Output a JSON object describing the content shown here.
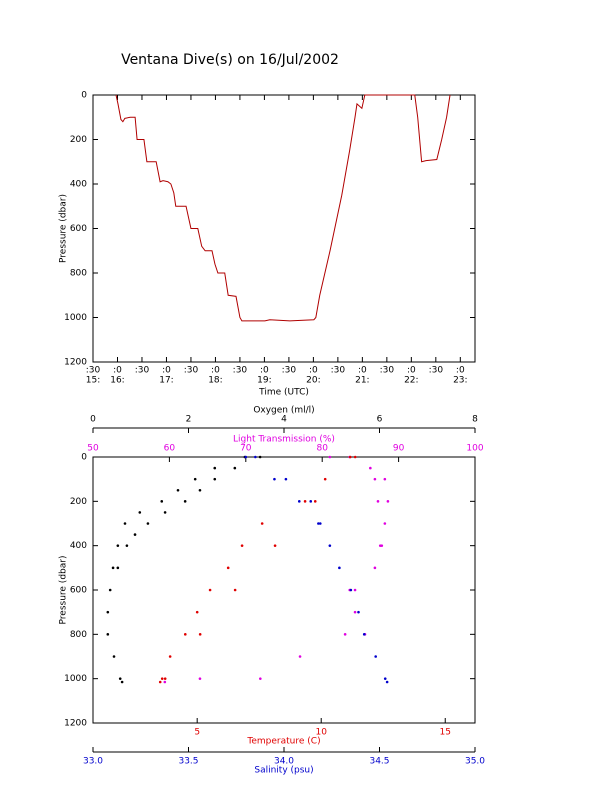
{
  "chart_data": [
    {
      "type": "line",
      "title": "Ventana Dive(s) on 16/Jul/2002",
      "xlabel": "Time (UTC)",
      "ylabel": "Pressure (dbar)",
      "color": "#b00000",
      "x": [
        15.97,
        16.01,
        16.07,
        16.11,
        16.15,
        16.26,
        16.36,
        16.4,
        16.54,
        16.6,
        16.79,
        16.87,
        16.93,
        17.03,
        17.09,
        17.15,
        17.19,
        17.4,
        17.46,
        17.5,
        17.64,
        17.72,
        17.79,
        17.93,
        17.99,
        18.05,
        18.19,
        18.26,
        18.42,
        18.5,
        18.54,
        19.01,
        19.11,
        19.52,
        20.01,
        20.05,
        20.13,
        20.34,
        20.58,
        20.74,
        20.85,
        20.89,
        20.99,
        21.05,
        21.11,
        22.07,
        22.13,
        22.21,
        22.3,
        22.52,
        22.62,
        22.72,
        22.79
      ],
      "values": [
        0,
        40,
        110,
        120,
        105,
        100,
        100,
        200,
        200,
        300,
        300,
        390,
        385,
        390,
        400,
        440,
        500,
        500,
        560,
        600,
        600,
        680,
        700,
        700,
        760,
        800,
        800,
        900,
        905,
        1000,
        1015,
        1015,
        1010,
        1015,
        1010,
        1000,
        900,
        700,
        450,
        250,
        100,
        40,
        60,
        0,
        0,
        0,
        100,
        300,
        295,
        290,
        200,
        100,
        0
      ],
      "xlim": [
        15.5,
        23.3
      ],
      "ylim": [
        1200,
        0
      ],
      "xticks": [
        {
          "value": 15.5,
          "label": ":30"
        },
        {
          "value": 16,
          "label": ":0"
        },
        {
          "value": 16.5,
          "label": ":30"
        },
        {
          "value": 17,
          "label": ":0"
        },
        {
          "value": 17.5,
          "label": ":30"
        },
        {
          "value": 18,
          "label": ":0"
        },
        {
          "value": 18.5,
          "label": ":30"
        },
        {
          "value": 19,
          "label": ":0"
        },
        {
          "value": 19.5,
          "label": ":30"
        },
        {
          "value": 20,
          "label": ":0"
        },
        {
          "value": 20.5,
          "label": ":30"
        },
        {
          "value": 21,
          "label": ":0"
        },
        {
          "value": 21.5,
          "label": ":30"
        },
        {
          "value": 22,
          "label": ":0"
        },
        {
          "value": 22.5,
          "label": ":30"
        },
        {
          "value": 23,
          "label": ":0"
        }
      ],
      "xtick_hours": [
        {
          "value": 15.5,
          "label": "15:"
        },
        {
          "value": 16,
          "label": "16:"
        },
        {
          "value": 17,
          "label": "17:"
        },
        {
          "value": 18,
          "label": "18:"
        },
        {
          "value": 19,
          "label": "19:"
        },
        {
          "value": 20,
          "label": "20:"
        },
        {
          "value": 21,
          "label": "21:"
        },
        {
          "value": 22,
          "label": "22:"
        },
        {
          "value": 23,
          "label": "23:"
        }
      ],
      "yticks": [
        0,
        200,
        400,
        600,
        800,
        1000,
        1200
      ]
    },
    {
      "type": "scatter",
      "ylabel": "Pressure (dbar)",
      "ylim": [
        1200,
        0
      ],
      "yticks": [
        0,
        200,
        400,
        600,
        800,
        1000,
        1200
      ],
      "x_axes": [
        {
          "label": "Oxygen (ml/l)",
          "color": "#000000",
          "position": "top-outer",
          "xlim": [
            0,
            8
          ],
          "xticks": [
            0,
            2,
            4,
            6,
            8
          ],
          "x": [
            3.18,
            2.55,
            2.14,
            1.78,
            1.44,
            0.98,
            0.67,
            0.52,
            0.42,
            0.36,
            0.31,
            0.31,
            0.44,
            0.57,
            0.61,
            3.5,
            2.97,
            2.55,
            2.24,
            1.93,
            1.51,
            1.15,
            0.88,
            0.71,
            0.52
          ],
          "values": [
            0,
            50,
            100,
            150,
            200,
            250,
            300,
            400,
            500,
            600,
            700,
            800,
            900,
            1000,
            1015,
            0,
            50,
            100,
            150,
            200,
            250,
            300,
            350,
            400,
            500
          ]
        },
        {
          "label": "Light Transmission (%)",
          "color": "#e000e0",
          "position": "top",
          "xlim": [
            50,
            100
          ],
          "xticks": [
            50,
            60,
            70,
            80,
            90,
            100
          ],
          "x": [
            81.0,
            86.3,
            86.9,
            87.3,
            88.2,
            87.6,
            86.9,
            83.6,
            84.3,
            85.6,
            77.1,
            64.0,
            59.4,
            83.6,
            88.2,
            88.6,
            87.8,
            84.3,
            83.0,
            71.9
          ],
          "values": [
            0,
            50,
            100,
            200,
            300,
            400,
            500,
            600,
            700,
            800,
            900,
            1000,
            1015,
            0,
            100,
            200,
            400,
            600,
            800,
            1000
          ]
        },
        {
          "label": "Temperature (C)",
          "color": "#e00000",
          "position": "bottom",
          "xlim": [
            0.8,
            16.2
          ],
          "xticks": [
            5,
            10,
            15
          ],
          "x": [
            11.17,
            10.16,
            9.35,
            7.62,
            6.81,
            6.25,
            5.52,
            5.0,
            4.52,
            3.91,
            3.59,
            3.51,
            3.71,
            5.12,
            6.53,
            8.14,
            9.76,
            11.37
          ],
          "values": [
            0,
            100,
            200,
            300,
            400,
            500,
            600,
            700,
            800,
            900,
            1000,
            1015,
            1000,
            800,
            600,
            400,
            200,
            0
          ]
        },
        {
          "label": "Salinity (psu)",
          "color": "#0000cc",
          "position": "bottom-outer",
          "xlim": [
            33,
            35
          ],
          "xticks": [
            {
              "value": 33,
              "label": "33.0"
            },
            33.5,
            {
              "value": 34,
              "label": "34.0"
            },
            34.5,
            {
              "value": 35,
              "label": "35.0"
            }
          ],
          "x": [
            33.85,
            34.01,
            34.14,
            34.19,
            34.24,
            34.29,
            34.35,
            34.39,
            34.42,
            34.48,
            34.53,
            34.54,
            33.8,
            33.95,
            34.08,
            34.18
          ],
          "values": [
            0,
            100,
            200,
            300,
            400,
            500,
            600,
            700,
            800,
            900,
            1000,
            1015,
            0,
            100,
            200,
            300
          ]
        }
      ]
    }
  ]
}
